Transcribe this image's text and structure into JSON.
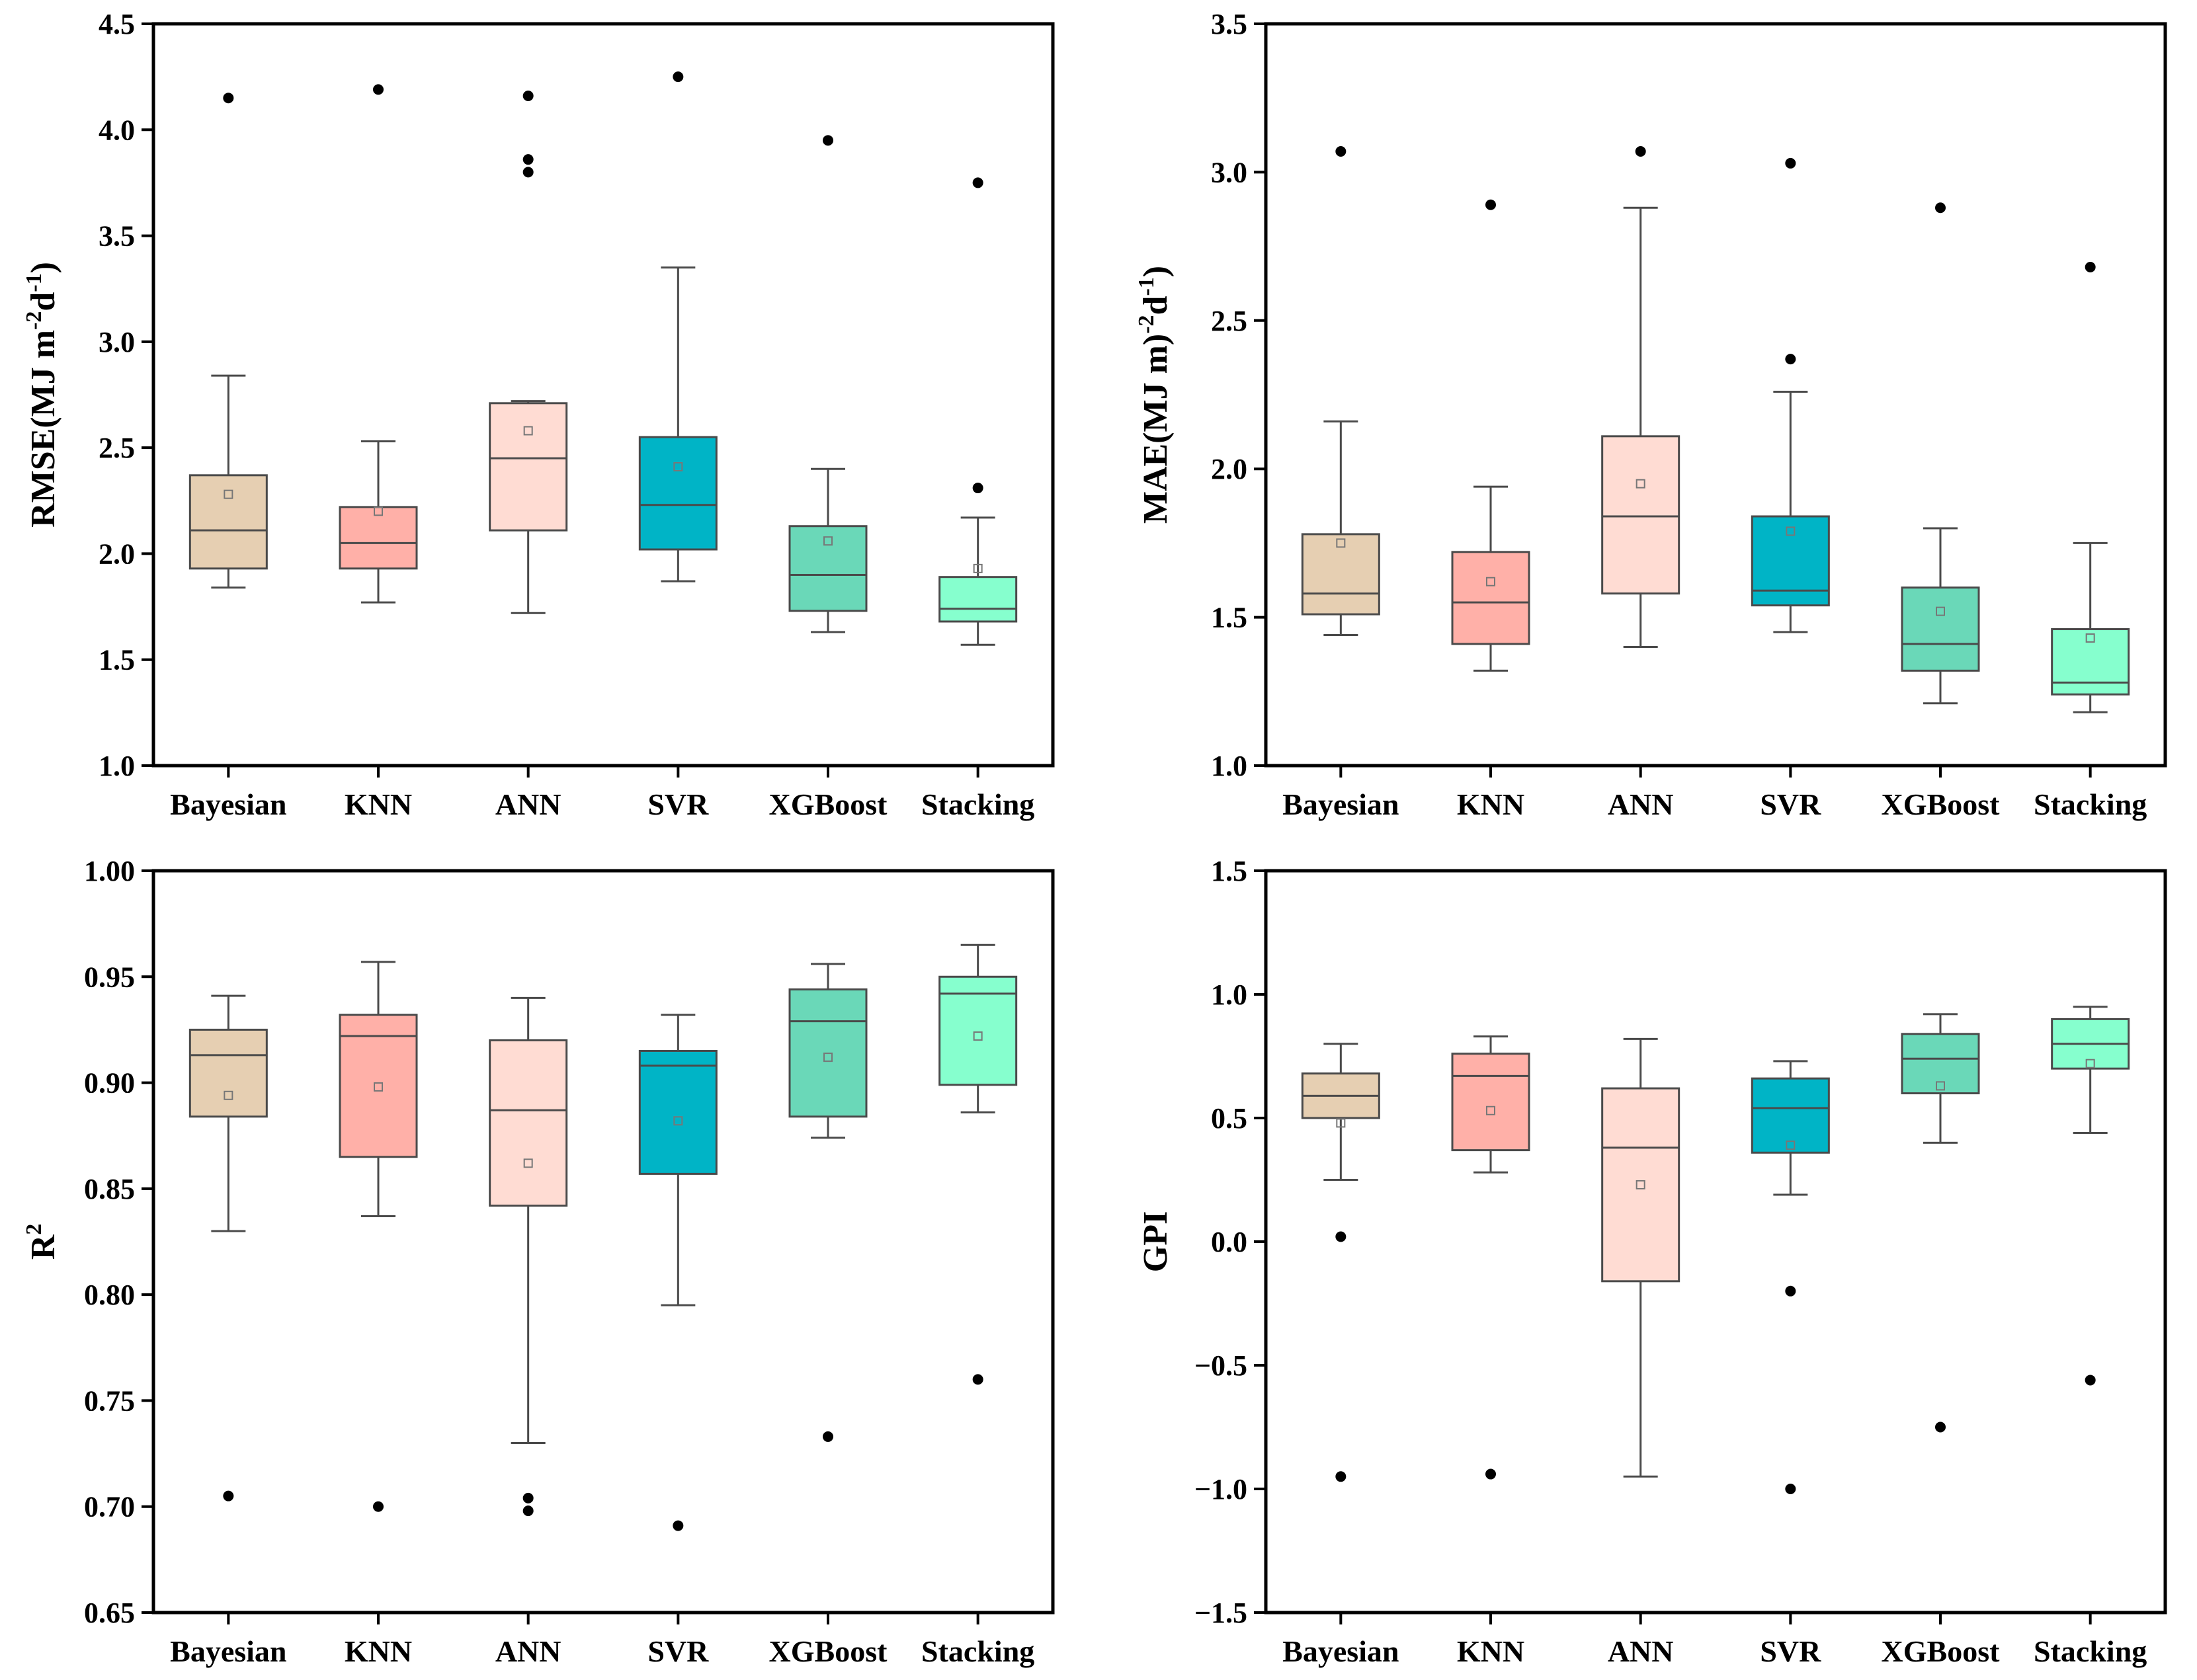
{
  "categories": [
    "Bayesian",
    "KNN",
    "ANN",
    "SVR",
    "XGBoost",
    "Stacking"
  ],
  "colors": [
    "#e6cfb2",
    "#ffb0a8",
    "#ffdcd3",
    "#00b4c6",
    "#6ad8b8",
    "#86ffce"
  ],
  "chart_data": [
    {
      "type": "box",
      "title": "",
      "ylabel": "RMSE(MJ m^-2 d^-1)",
      "ylabel_parts": {
        "pre": "RMSE(MJ m",
        "sup1": "-2",
        "mid": "d",
        "sup2": "-1",
        "post": ")"
      },
      "ylim": [
        1.0,
        4.5
      ],
      "yticks": [
        "1.0",
        "1.5",
        "2.0",
        "2.5",
        "3.0",
        "3.5",
        "4.0",
        "4.5"
      ],
      "boxes": [
        {
          "name": "Bayesian",
          "whislo": 1.84,
          "q1": 1.93,
          "med": 2.11,
          "q3": 2.37,
          "whishi": 2.84,
          "mean": 2.28,
          "fliers": [
            4.15
          ]
        },
        {
          "name": "KNN",
          "whislo": 1.77,
          "q1": 1.93,
          "med": 2.05,
          "q3": 2.22,
          "whishi": 2.53,
          "mean": 2.2,
          "fliers": [
            4.19
          ]
        },
        {
          "name": "ANN",
          "whislo": 1.72,
          "q1": 2.11,
          "med": 2.45,
          "q3": 2.71,
          "whishi": 2.72,
          "mean": 2.58,
          "fliers": [
            4.16,
            3.86,
            3.8
          ]
        },
        {
          "name": "SVR",
          "whislo": 1.87,
          "q1": 2.02,
          "med": 2.23,
          "q3": 2.55,
          "whishi": 3.35,
          "mean": 2.41,
          "fliers": [
            4.25
          ]
        },
        {
          "name": "XGBoost",
          "whislo": 1.63,
          "q1": 1.73,
          "med": 1.9,
          "q3": 2.13,
          "whishi": 2.4,
          "mean": 2.06,
          "fliers": [
            3.95
          ]
        },
        {
          "name": "Stacking",
          "whislo": 1.57,
          "q1": 1.68,
          "med": 1.74,
          "q3": 1.89,
          "whishi": 2.17,
          "mean": 1.93,
          "fliers": [
            3.75,
            2.31
          ]
        }
      ]
    },
    {
      "type": "box",
      "title": "",
      "ylabel": "MAE(MJ m)^-2 d^-1)",
      "ylabel_parts": {
        "pre": "MAE(MJ m)",
        "sup1": "-2",
        "mid": "d",
        "sup2": "-1",
        "post": ")"
      },
      "ylim": [
        1.0,
        3.5
      ],
      "yticks": [
        "1.0",
        "1.5",
        "2.0",
        "2.5",
        "3.0",
        "3.5"
      ],
      "boxes": [
        {
          "name": "Bayesian",
          "whislo": 1.44,
          "q1": 1.51,
          "med": 1.58,
          "q3": 1.78,
          "whishi": 2.16,
          "mean": 1.75,
          "fliers": [
            3.07
          ]
        },
        {
          "name": "KNN",
          "whislo": 1.32,
          "q1": 1.41,
          "med": 1.55,
          "q3": 1.72,
          "whishi": 1.94,
          "mean": 1.62,
          "fliers": [
            2.89
          ]
        },
        {
          "name": "ANN",
          "whislo": 1.4,
          "q1": 1.58,
          "med": 1.84,
          "q3": 2.11,
          "whishi": 2.88,
          "mean": 1.95,
          "fliers": [
            3.07
          ]
        },
        {
          "name": "SVR",
          "whislo": 1.45,
          "q1": 1.54,
          "med": 1.59,
          "q3": 1.84,
          "whishi": 2.26,
          "mean": 1.79,
          "fliers": [
            3.03,
            2.37
          ]
        },
        {
          "name": "XGBoost",
          "whislo": 1.21,
          "q1": 1.32,
          "med": 1.41,
          "q3": 1.6,
          "whishi": 1.8,
          "mean": 1.52,
          "fliers": [
            2.88
          ]
        },
        {
          "name": "Stacking",
          "whislo": 1.18,
          "q1": 1.24,
          "med": 1.28,
          "q3": 1.46,
          "whishi": 1.75,
          "mean": 1.43,
          "fliers": [
            2.68
          ]
        }
      ]
    },
    {
      "type": "box",
      "title": "",
      "ylabel": "R^2",
      "ylabel_parts": {
        "pre": "R",
        "sup1": "2",
        "mid": "",
        "sup2": "",
        "post": ""
      },
      "ylim": [
        0.65,
        1.0
      ],
      "yticks": [
        "0.65",
        "0.70",
        "0.75",
        "0.80",
        "0.85",
        "0.90",
        "0.95",
        "1.00"
      ],
      "boxes": [
        {
          "name": "Bayesian",
          "whislo": 0.83,
          "q1": 0.884,
          "med": 0.913,
          "q3": 0.925,
          "whishi": 0.941,
          "mean": 0.894,
          "fliers": [
            0.705
          ]
        },
        {
          "name": "KNN",
          "whislo": 0.837,
          "q1": 0.865,
          "med": 0.922,
          "q3": 0.932,
          "whishi": 0.957,
          "mean": 0.898,
          "fliers": [
            0.7
          ]
        },
        {
          "name": "ANN",
          "whislo": 0.73,
          "q1": 0.842,
          "med": 0.887,
          "q3": 0.92,
          "whishi": 0.94,
          "mean": 0.862,
          "fliers": [
            0.704,
            0.698
          ]
        },
        {
          "name": "SVR",
          "whislo": 0.795,
          "q1": 0.857,
          "med": 0.908,
          "q3": 0.915,
          "whishi": 0.932,
          "mean": 0.882,
          "fliers": [
            0.691
          ]
        },
        {
          "name": "XGBoost",
          "whislo": 0.874,
          "q1": 0.884,
          "med": 0.929,
          "q3": 0.944,
          "whishi": 0.956,
          "mean": 0.912,
          "fliers": [
            0.733
          ]
        },
        {
          "name": "Stacking",
          "whislo": 0.886,
          "q1": 0.899,
          "med": 0.942,
          "q3": 0.95,
          "whishi": 0.965,
          "mean": 0.922,
          "fliers": [
            0.76
          ]
        }
      ]
    },
    {
      "type": "box",
      "title": "",
      "ylabel": "GPI",
      "ylabel_parts": {
        "pre": "GPI",
        "sup1": "",
        "mid": "",
        "sup2": "",
        "post": ""
      },
      "ylim": [
        -1.5,
        1.5
      ],
      "yticks": [
        "−1.5",
        "−1.0",
        "−0.5",
        "0.0",
        "0.5",
        "1.0",
        "1.5"
      ],
      "boxes": [
        {
          "name": "Bayesian",
          "whislo": 0.25,
          "q1": 0.5,
          "med": 0.59,
          "q3": 0.68,
          "whishi": 0.8,
          "mean": 0.48,
          "fliers": [
            0.02,
            -0.95
          ]
        },
        {
          "name": "KNN",
          "whislo": 0.28,
          "q1": 0.37,
          "med": 0.67,
          "q3": 0.76,
          "whishi": 0.83,
          "mean": 0.53,
          "fliers": [
            -0.94
          ]
        },
        {
          "name": "ANN",
          "whislo": -0.95,
          "q1": -0.16,
          "med": 0.38,
          "q3": 0.62,
          "whishi": 0.82,
          "mean": 0.23,
          "fliers": []
        },
        {
          "name": "SVR",
          "whislo": 0.19,
          "q1": 0.36,
          "med": 0.54,
          "q3": 0.66,
          "whishi": 0.73,
          "mean": 0.39,
          "fliers": [
            -0.2,
            -1.0
          ]
        },
        {
          "name": "XGBoost",
          "whislo": 0.4,
          "q1": 0.6,
          "med": 0.74,
          "q3": 0.84,
          "whishi": 0.92,
          "mean": 0.63,
          "fliers": [
            -0.75
          ]
        },
        {
          "name": "Stacking",
          "whislo": 0.44,
          "q1": 0.7,
          "med": 0.8,
          "q3": 0.9,
          "whishi": 0.95,
          "mean": 0.72,
          "fliers": [
            -0.56
          ]
        }
      ]
    }
  ]
}
